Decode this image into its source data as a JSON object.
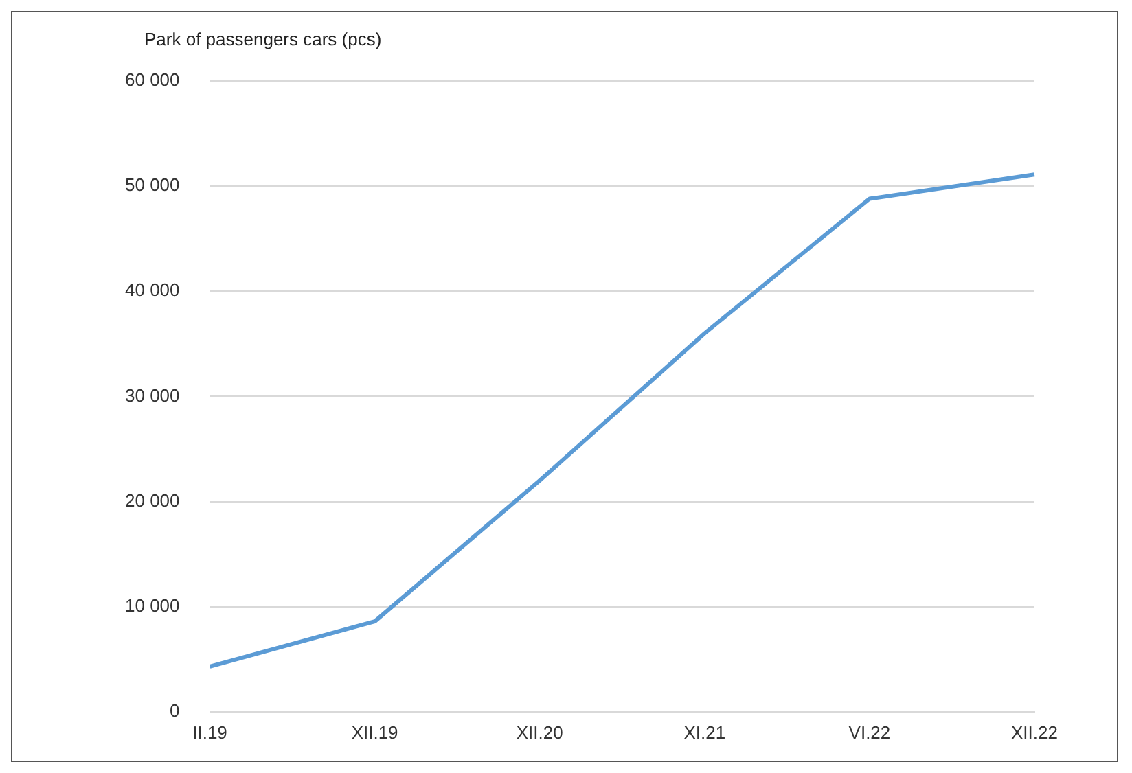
{
  "chart_data": {
    "type": "line",
    "ylabel": "Park of passengers cars (pcs)",
    "categories": [
      "II.19",
      "XII.19",
      "XII.20",
      "XI.21",
      "VI.22",
      "XII.22"
    ],
    "series": [
      {
        "color": "#5b9bd5",
        "values": [
          4300,
          8600,
          22000,
          36000,
          48800,
          51100
        ]
      }
    ],
    "ylim": [
      0,
      60000
    ],
    "yticks": [
      {
        "value": 0,
        "label": "0"
      },
      {
        "value": 10000,
        "label": "10 000"
      },
      {
        "value": 20000,
        "label": "20 000"
      },
      {
        "value": 30000,
        "label": "30 000"
      },
      {
        "value": 40000,
        "label": "40 000"
      },
      {
        "value": 50000,
        "label": "50 000"
      },
      {
        "value": 60000,
        "label": "60 000"
      }
    ],
    "grid": "y",
    "legend": false,
    "marker": "none",
    "line_style": "solid"
  }
}
